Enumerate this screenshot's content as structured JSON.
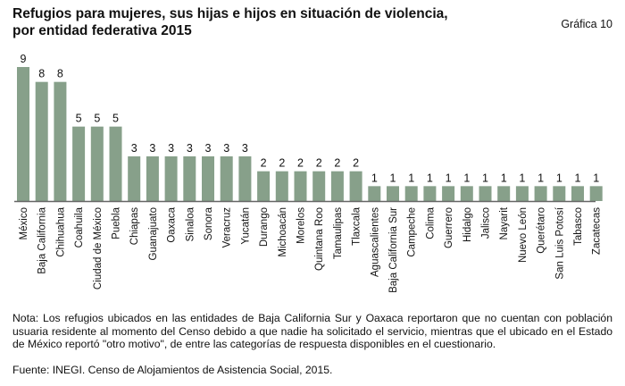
{
  "title_line1": "Refugios para mujeres, sus hijas e hijos en situación de violencia,",
  "title_line2": "por entidad federativa 2015",
  "graph_number": "Gráfica 10",
  "note": "Nota: Los refugios ubicados en las entidades de Baja California Sur y Oaxaca reportaron que no cuentan con población usuaria residente al momento del Censo debido a que nadie ha solicitado el servicio, mientras que el ubicado en el Estado de México reportó \"otro motivo\", de entre las categorías de respuesta disponibles en el cuestionario.",
  "source": "Fuente: INEGI. Censo de Alojamientos de Asistencia Social, 2015.",
  "chart_data": {
    "type": "bar",
    "title": "Refugios para mujeres, sus hijas e hijos en situación de violencia, por entidad federativa 2015",
    "bar_color": "#87a08a",
    "ylim": [
      0,
      9
    ],
    "grid": false,
    "categories": [
      "México",
      "Baja California",
      "Chihuahua",
      "Coahuila",
      "Ciudad de México",
      "Puebla",
      "Chiapas",
      "Guanajuato",
      "Oaxaca",
      "Sinaloa",
      "Sonora",
      "Veracruz",
      "Yucatán",
      "Durango",
      "Michoacán",
      "Morelos",
      "Quintana Roo",
      "Tamaulipas",
      "Tlaxcala",
      "Aguascalientes",
      "Baja California Sur",
      "Campeche",
      "Colima",
      "Guerrero",
      "Hidalgo",
      "Jalisco",
      "Nayarit",
      "Nuevo León",
      "Querétaro",
      "San Luis Potosí",
      "Tabasco",
      "Zacatecas"
    ],
    "values": [
      9,
      8,
      8,
      5,
      5,
      5,
      3,
      3,
      3,
      3,
      3,
      3,
      3,
      2,
      2,
      2,
      2,
      2,
      2,
      1,
      1,
      1,
      1,
      1,
      1,
      1,
      1,
      1,
      1,
      1,
      1,
      1
    ]
  }
}
